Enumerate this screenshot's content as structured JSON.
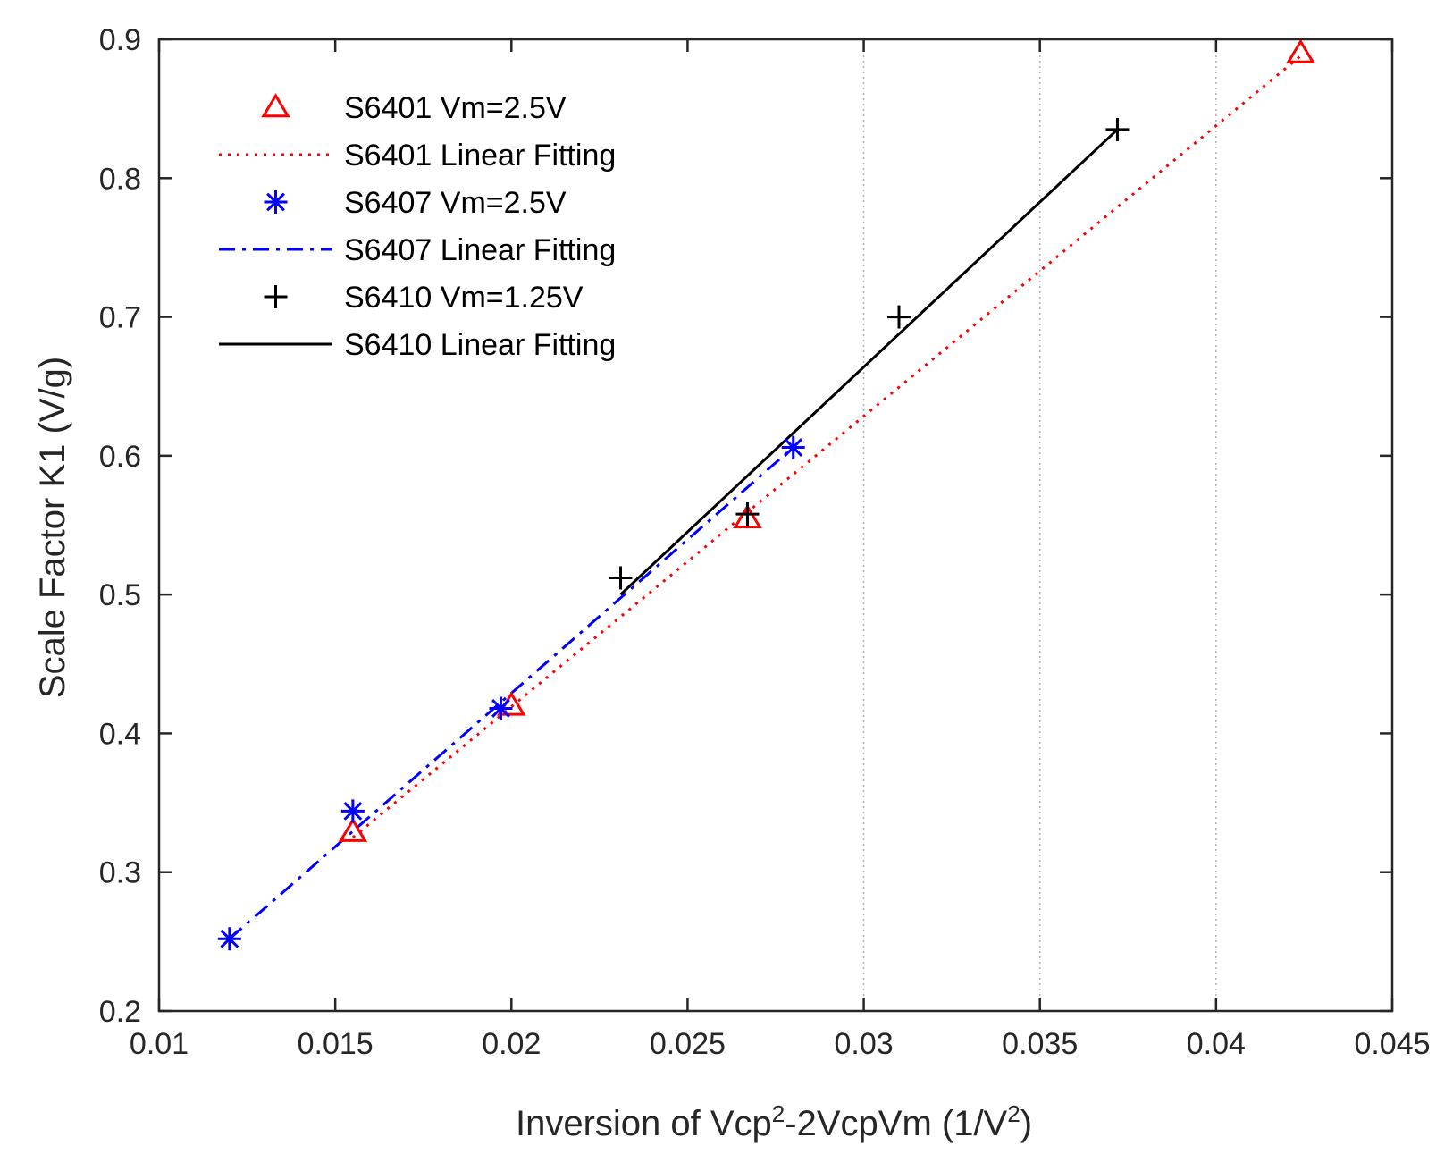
{
  "chart_data": {
    "type": "scatter",
    "title": "",
    "xlabel": {
      "prefix": "Inversion of Vcp",
      "sup1": "2",
      "middle": "-2VcpVm (1/V",
      "sup2": "2",
      "suffix": ")"
    },
    "ylabel": "Scale Factor K1 (V/g)",
    "xlim": [
      0.01,
      0.045
    ],
    "ylim": [
      0.2,
      0.9
    ],
    "xticks": [
      {
        "value": 0.01,
        "label": "0.01"
      },
      {
        "value": 0.015,
        "label": "0.015"
      },
      {
        "value": 0.02,
        "label": "0.02"
      },
      {
        "value": 0.025,
        "label": "0.025"
      },
      {
        "value": 0.03,
        "label": "0.03"
      },
      {
        "value": 0.035,
        "label": "0.035"
      },
      {
        "value": 0.04,
        "label": "0.04"
      },
      {
        "value": 0.045,
        "label": "0.045"
      }
    ],
    "yticks": [
      {
        "value": 0.2,
        "label": "0.2"
      },
      {
        "value": 0.3,
        "label": "0.3"
      },
      {
        "value": 0.4,
        "label": "0.4"
      },
      {
        "value": 0.5,
        "label": "0.5"
      },
      {
        "value": 0.6,
        "label": "0.6"
      },
      {
        "value": 0.7,
        "label": "0.7"
      },
      {
        "value": 0.8,
        "label": "0.8"
      },
      {
        "value": 0.9,
        "label": "0.9"
      }
    ],
    "vertical_gridlines": [
      0.03,
      0.035,
      0.04
    ],
    "legend_position": "top-left",
    "series": [
      {
        "name": "S6401  Vm=2.5V",
        "kind": "markers",
        "marker": "triangle",
        "color": "#ff0000",
        "x": [
          0.0155,
          0.02,
          0.0267,
          0.0424
        ],
        "y": [
          0.329,
          0.42,
          0.555,
          0.89
        ]
      },
      {
        "name": "S6401 Linear Fitting",
        "kind": "line",
        "dash": "dotted",
        "color": "#ff0000",
        "x": [
          0.0155,
          0.0424
        ],
        "y": [
          0.325,
          0.888
        ]
      },
      {
        "name": "S6407  Vm=2.5V",
        "kind": "markers",
        "marker": "asterisk",
        "color": "#0000ff",
        "x": [
          0.012,
          0.0155,
          0.0197,
          0.028
        ],
        "y": [
          0.252,
          0.344,
          0.418,
          0.606
        ]
      },
      {
        "name": "S6407 Linear Fitting",
        "kind": "line",
        "dash": "dashdot",
        "color": "#0000ff",
        "x": [
          0.012,
          0.028
        ],
        "y": [
          0.252,
          0.606
        ]
      },
      {
        "name": "S6410  Vm=1.25V",
        "kind": "markers",
        "marker": "plus",
        "color": "#000000",
        "x": [
          0.0231,
          0.0267,
          0.031,
          0.0372
        ],
        "y": [
          0.512,
          0.558,
          0.7,
          0.835
        ]
      },
      {
        "name": "S6410 Linear Fitting",
        "kind": "line",
        "dash": "solid",
        "color": "#000000",
        "x": [
          0.0231,
          0.0372
        ],
        "y": [
          0.5,
          0.835
        ]
      }
    ]
  }
}
